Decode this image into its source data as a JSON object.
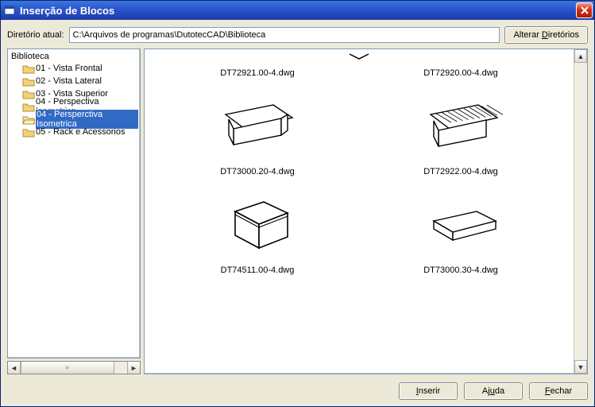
{
  "window": {
    "title": "Inserção de Blocos"
  },
  "path": {
    "label": "Diretório atual:",
    "value": "C:\\Arquivos de programas\\DutotecCAD\\Biblioteca",
    "change_btn": "Alterar Diretórios"
  },
  "tree": {
    "root": "Biblioteca",
    "items": [
      {
        "label": "01 - Vista Frontal",
        "selected": false
      },
      {
        "label": "02 - Vista Lateral",
        "selected": false
      },
      {
        "label": "03 - Vista Superior",
        "selected": false
      },
      {
        "label": "04 - Perspectiva Isometrica",
        "selected": false
      },
      {
        "label": "04 - Persperctiva Isometrica",
        "selected": true
      },
      {
        "label": "05 - Rack e Acessorios",
        "selected": false
      }
    ]
  },
  "thumbs": [
    {
      "caption": "DT72921.00-4.dwg",
      "shape": "none"
    },
    {
      "caption": "DT72920.00-4.dwg",
      "shape": "none"
    },
    {
      "caption": "DT73000.20-4.dwg",
      "shape": "tray"
    },
    {
      "caption": "DT72922.00-4.dwg",
      "shape": "slotted"
    },
    {
      "caption": "DT74511.00-4.dwg",
      "shape": "box"
    },
    {
      "caption": "DT73000.30-4.dwg",
      "shape": "flat"
    }
  ],
  "footer": {
    "insert": "Inserir",
    "help": "Ajuda",
    "close": "Fechar"
  },
  "colors": {
    "panel_border": "#7f9db9",
    "selection_bg": "#316ac5"
  }
}
